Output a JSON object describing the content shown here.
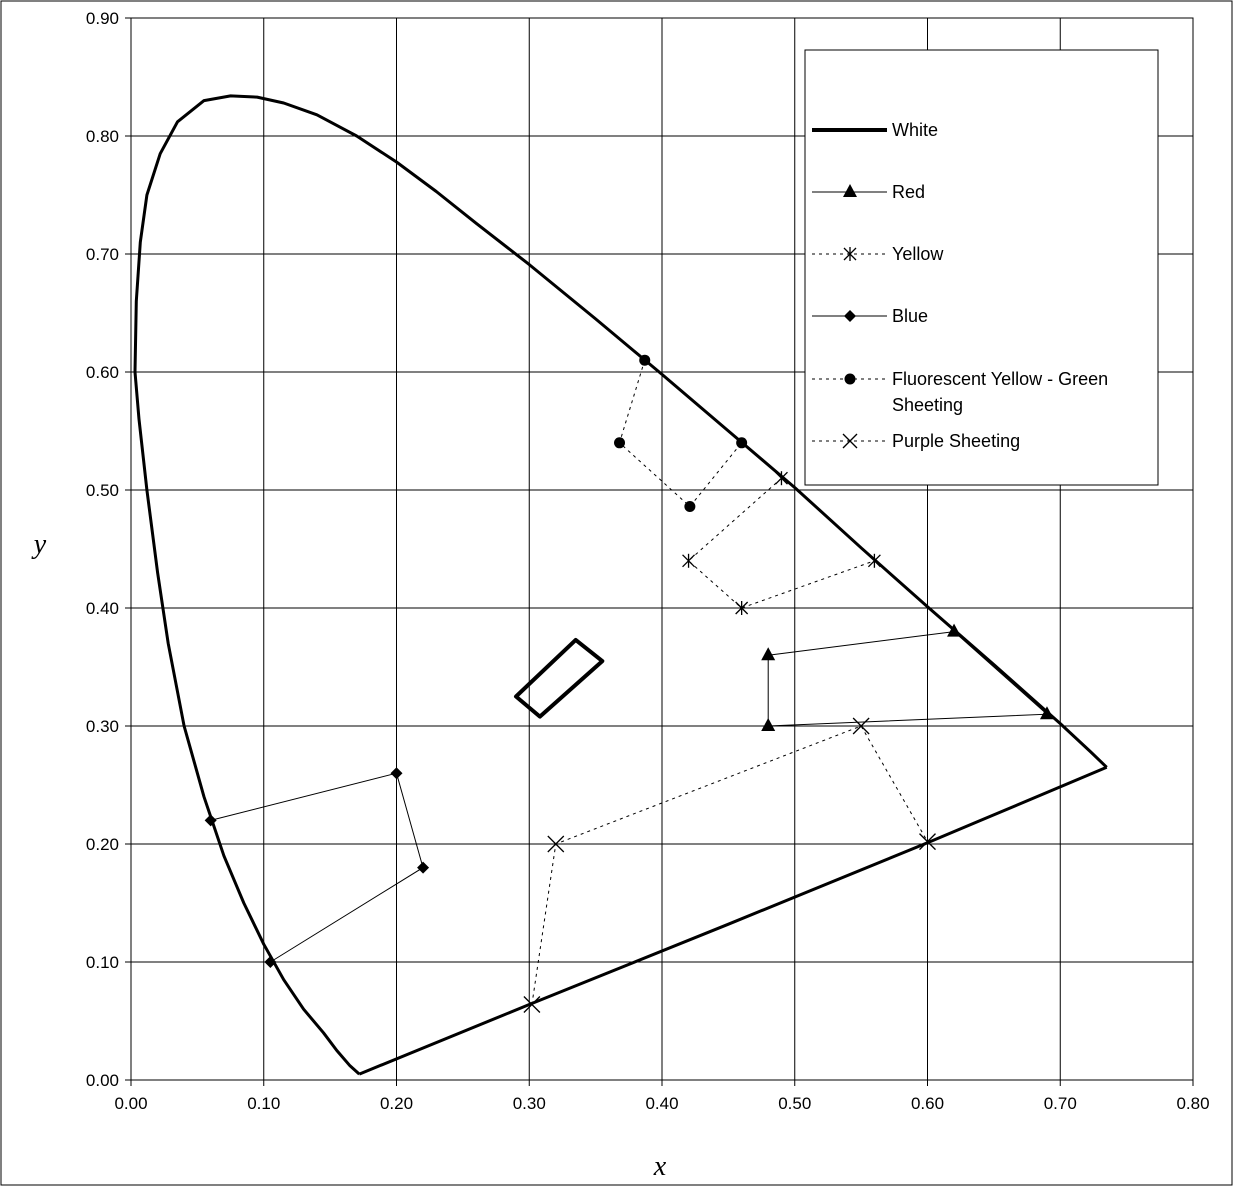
{
  "chart_data": {
    "type": "scatter",
    "title": "",
    "xlabel": "x",
    "ylabel": "y",
    "xlim": [
      0,
      0.8
    ],
    "ylim": [
      0,
      0.9
    ],
    "xticks": [
      "0.00",
      "0.10",
      "0.20",
      "0.30",
      "0.40",
      "0.50",
      "0.60",
      "0.70",
      "0.80"
    ],
    "yticks": [
      "0.00",
      "0.10",
      "0.20",
      "0.30",
      "0.40",
      "0.50",
      "0.60",
      "0.70",
      "0.80",
      "0.90"
    ],
    "grid": true,
    "legend_position": "top-right",
    "spectral_locus": [
      [
        0.172,
        0.005
      ],
      [
        0.165,
        0.012
      ],
      [
        0.155,
        0.025
      ],
      [
        0.145,
        0.04
      ],
      [
        0.13,
        0.06
      ],
      [
        0.115,
        0.085
      ],
      [
        0.1,
        0.115
      ],
      [
        0.085,
        0.15
      ],
      [
        0.07,
        0.19
      ],
      [
        0.055,
        0.24
      ],
      [
        0.04,
        0.3
      ],
      [
        0.028,
        0.37
      ],
      [
        0.02,
        0.43
      ],
      [
        0.012,
        0.5
      ],
      [
        0.006,
        0.56
      ],
      [
        0.003,
        0.6
      ],
      [
        0.004,
        0.66
      ],
      [
        0.007,
        0.71
      ],
      [
        0.012,
        0.75
      ],
      [
        0.022,
        0.785
      ],
      [
        0.035,
        0.812
      ],
      [
        0.055,
        0.83
      ],
      [
        0.075,
        0.834
      ],
      [
        0.095,
        0.833
      ],
      [
        0.115,
        0.828
      ],
      [
        0.14,
        0.818
      ],
      [
        0.17,
        0.8
      ],
      [
        0.2,
        0.778
      ],
      [
        0.23,
        0.753
      ],
      [
        0.26,
        0.726
      ],
      [
        0.3,
        0.691
      ],
      [
        0.35,
        0.645
      ],
      [
        0.4,
        0.598
      ],
      [
        0.45,
        0.55
      ],
      [
        0.5,
        0.502
      ],
      [
        0.55,
        0.451
      ],
      [
        0.6,
        0.401
      ],
      [
        0.65,
        0.352
      ],
      [
        0.7,
        0.302
      ],
      [
        0.723,
        0.278
      ],
      [
        0.735,
        0.265
      ]
    ],
    "purple_line": [
      [
        0.735,
        0.265
      ],
      [
        0.64,
        0.22
      ],
      [
        0.6,
        0.201
      ],
      [
        0.45,
        0.132
      ],
      [
        0.3,
        0.064
      ],
      [
        0.172,
        0.005
      ]
    ],
    "white_box": [
      [
        0.29,
        0.325
      ],
      [
        0.335,
        0.373
      ],
      [
        0.355,
        0.355
      ],
      [
        0.308,
        0.308
      ]
    ],
    "series": [
      {
        "name": "White",
        "marker": "none",
        "dash": "solid",
        "points": []
      },
      {
        "name": "Red",
        "marker": "triangle",
        "dash": "solid",
        "points": [
          [
            0.48,
            0.36
          ],
          [
            0.62,
            0.38
          ],
          [
            0.69,
            0.31
          ],
          [
            0.48,
            0.3
          ],
          [
            0.48,
            0.36
          ]
        ]
      },
      {
        "name": "Yellow",
        "marker": "asterisk",
        "dash": "dotted",
        "points": [
          [
            0.49,
            0.51
          ],
          [
            0.42,
            0.44
          ],
          [
            0.46,
            0.4
          ],
          [
            0.56,
            0.44
          ]
        ]
      },
      {
        "name": "Blue",
        "marker": "diamond",
        "dash": "solid",
        "points": [
          [
            0.06,
            0.22
          ],
          [
            0.2,
            0.26
          ],
          [
            0.22,
            0.18
          ],
          [
            0.105,
            0.1
          ]
        ]
      },
      {
        "name": "Fluorescent Yellow - Green Sheeting",
        "marker": "circle",
        "dash": "dotted",
        "points": [
          [
            0.387,
            0.61
          ],
          [
            0.368,
            0.54
          ],
          [
            0.421,
            0.486
          ],
          [
            0.46,
            0.54
          ]
        ]
      },
      {
        "name": "Purple Sheeting",
        "marker": "x",
        "dash": "dotted",
        "points": [
          [
            0.302,
            0.064
          ],
          [
            0.32,
            0.2
          ],
          [
            0.55,
            0.3
          ],
          [
            0.6,
            0.202
          ]
        ]
      }
    ],
    "legend_labels": {
      "white": "White",
      "red": "Red",
      "yellow": "Yellow",
      "blue": "Blue",
      "fluorescent_line1": "Fluorescent Yellow - Green",
      "fluorescent_line2": "Sheeting",
      "purple": "Purple Sheeting"
    }
  }
}
